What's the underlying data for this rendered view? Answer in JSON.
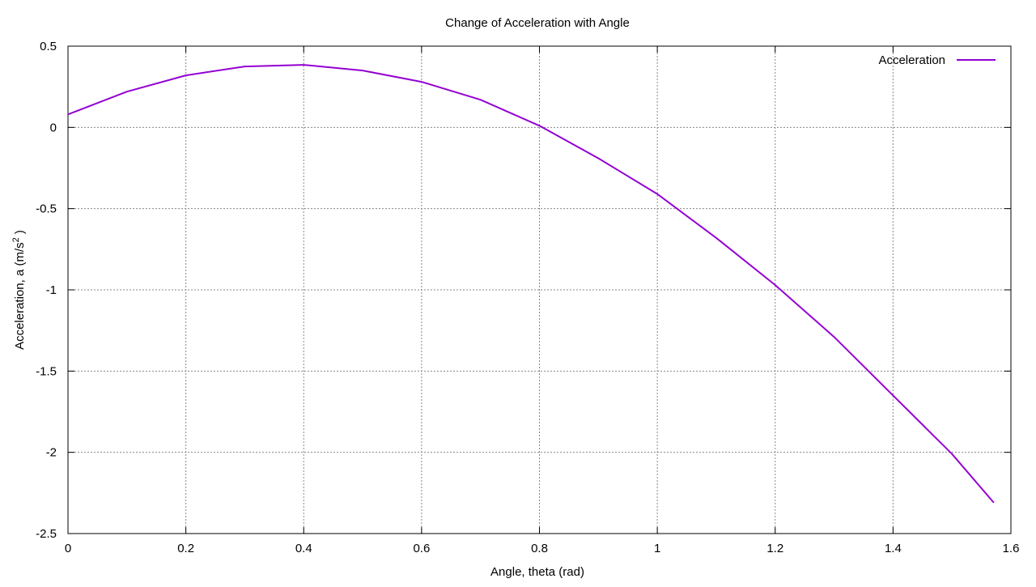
{
  "chart_data": {
    "type": "line",
    "title": "Change of Acceleration with Angle",
    "xlabel": "Angle, theta (rad)",
    "ylabel_main": "Acceleration, a (m/s",
    "ylabel_sup": "2",
    "ylabel_tail": " )",
    "xlim": [
      0,
      1.6
    ],
    "ylim": [
      -2.5,
      0.5
    ],
    "xticks": [
      0,
      0.2,
      0.4,
      0.6,
      0.8,
      1,
      1.2,
      1.4,
      1.6
    ],
    "yticks": [
      0.5,
      0,
      -0.5,
      -1,
      -1.5,
      -2,
      -2.5
    ],
    "grid": true,
    "legend_position": "top-right",
    "series": [
      {
        "name": "Acceleration",
        "color": "#9400d3",
        "x": [
          0,
          0.1,
          0.2,
          0.3,
          0.4,
          0.5,
          0.6,
          0.7,
          0.8,
          0.9,
          1.0,
          1.1,
          1.2,
          1.3,
          1.4,
          1.5,
          1.571
        ],
        "y": [
          0.08,
          0.22,
          0.32,
          0.375,
          0.385,
          0.35,
          0.28,
          0.17,
          0.01,
          -0.19,
          -0.41,
          -0.68,
          -0.97,
          -1.29,
          -1.65,
          -2.01,
          -2.31
        ]
      }
    ]
  }
}
